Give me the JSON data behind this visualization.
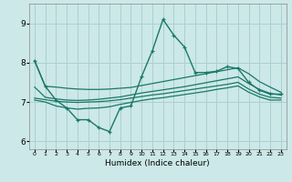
{
  "xlabel": "Humidex (Indice chaleur)",
  "background_color": "#cce8e8",
  "grid_color": "#aad0d0",
  "line_color": "#1a7868",
  "x": [
    0,
    1,
    2,
    3,
    4,
    5,
    6,
    7,
    8,
    9,
    10,
    11,
    12,
    13,
    14,
    15,
    16,
    17,
    18,
    19,
    20,
    21,
    22,
    23
  ],
  "y_main": [
    8.05,
    7.4,
    7.05,
    6.85,
    6.55,
    6.55,
    6.35,
    6.25,
    6.85,
    6.9,
    7.65,
    8.3,
    9.1,
    8.7,
    8.4,
    7.75,
    7.75,
    7.78,
    7.9,
    7.85,
    7.5,
    7.3,
    7.2,
    7.2
  ],
  "y_line1": [
    8.05,
    7.4,
    7.38,
    7.35,
    7.33,
    7.32,
    7.32,
    7.33,
    7.35,
    7.37,
    7.42,
    7.47,
    7.52,
    7.57,
    7.62,
    7.67,
    7.72,
    7.77,
    7.82,
    7.87,
    7.72,
    7.52,
    7.38,
    7.25
  ],
  "y_line2": [
    7.38,
    7.12,
    7.08,
    7.05,
    7.04,
    7.05,
    7.07,
    7.1,
    7.13,
    7.18,
    7.23,
    7.27,
    7.31,
    7.35,
    7.39,
    7.44,
    7.49,
    7.54,
    7.59,
    7.64,
    7.47,
    7.32,
    7.22,
    7.18
  ],
  "y_line3": [
    7.1,
    7.06,
    7.02,
    7.0,
    6.99,
    7.0,
    7.01,
    7.03,
    7.06,
    7.1,
    7.14,
    7.18,
    7.21,
    7.25,
    7.29,
    7.33,
    7.37,
    7.41,
    7.45,
    7.5,
    7.33,
    7.2,
    7.12,
    7.1
  ],
  "y_line4": [
    7.05,
    7.0,
    6.9,
    6.85,
    6.82,
    6.84,
    6.85,
    6.88,
    6.94,
    6.99,
    7.04,
    7.08,
    7.11,
    7.15,
    7.19,
    7.23,
    7.27,
    7.32,
    7.36,
    7.41,
    7.25,
    7.13,
    7.05,
    7.05
  ],
  "yticks": [
    6,
    7,
    8,
    9
  ],
  "ylim": [
    5.8,
    9.5
  ],
  "xlim": [
    -0.5,
    23.5
  ]
}
